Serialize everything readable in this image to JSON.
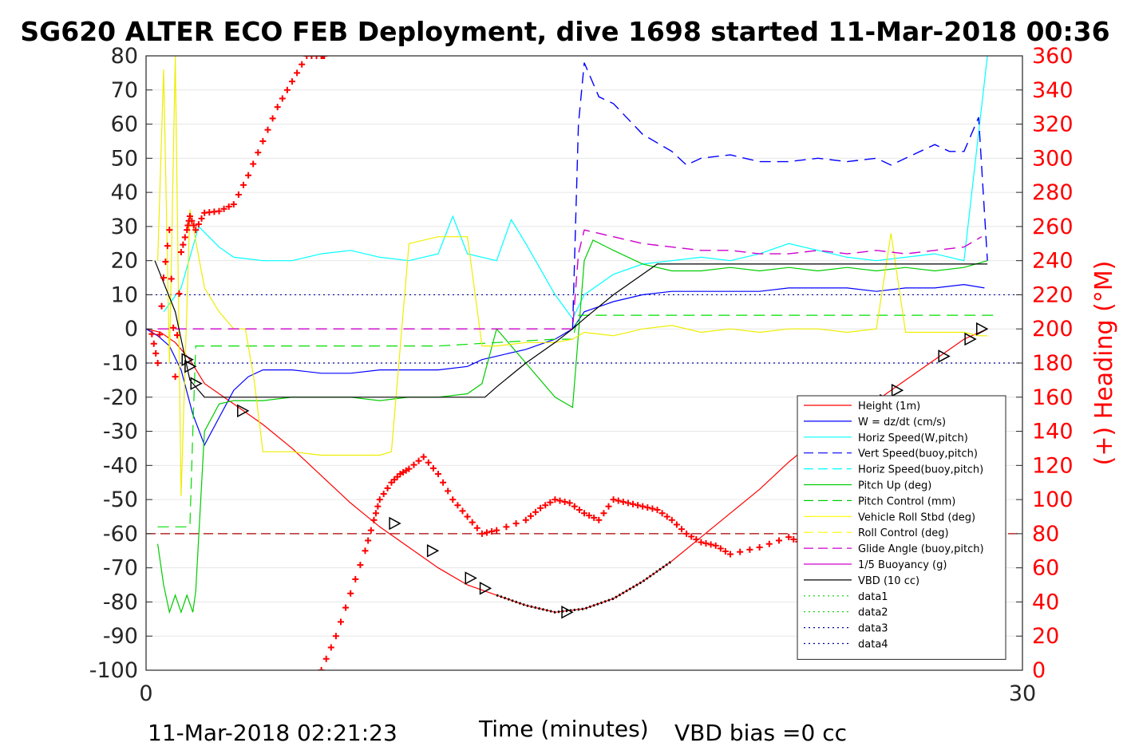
{
  "title": "SG620 ALTER ECO FEB Deployment, dive 1698 started 11-Mar-2018 00:36",
  "footer": {
    "timestamp": "11-Mar-2018 02:21:23",
    "vbd_bias": "VBD bias =0 cc"
  },
  "colors": {
    "height": "#ff0000",
    "w": "#0000ff",
    "horiz_speed": "#00ffff",
    "vert_speed_dash": "#0000cc",
    "pitch": "#00cc00",
    "pitch_control": "#00dd00",
    "roll": "#ffff00",
    "glide": "#cc00cc",
    "buoyancy": "#cc00cc",
    "vbd": "#000000",
    "heading": "#ff0000",
    "axis": "#262626"
  },
  "chart_data": {
    "type": "line",
    "xlabel": "Time (minutes)",
    "ylabel_right": "(+) Heading (°M)",
    "xlim": [
      0,
      30
    ],
    "ylim": [
      -100,
      80
    ],
    "ylim_right": [
      0,
      360
    ],
    "x_ticks": [
      "0",
      "30"
    ],
    "y_ticks": [
      "80",
      "70",
      "60",
      "50",
      "40",
      "30",
      "20",
      "10",
      "0",
      "-10",
      "-20",
      "-30",
      "-40",
      "-50",
      "-60",
      "-70",
      "-80",
      "-90",
      "-100"
    ],
    "y_ticks_right": [
      "360",
      "340",
      "320",
      "300",
      "280",
      "260",
      "240",
      "220",
      "200",
      "180",
      "160",
      "140",
      "120",
      "100",
      "80",
      "60",
      "40",
      "20",
      "0"
    ],
    "legend_position": "lower-right",
    "legend": [
      {
        "label": "Height (1m)",
        "style": "solid",
        "color": "#ff0000"
      },
      {
        "label": "W = dz/dt (cm/s)",
        "style": "solid",
        "color": "#0000ff"
      },
      {
        "label": "Horiz Speed(W,pitch)",
        "style": "solid",
        "color": "#00ffff"
      },
      {
        "label": "Vert Speed(buoy,pitch)",
        "style": "dashed",
        "color": "#0000ff"
      },
      {
        "label": "Horiz Speed(buoy,pitch)",
        "style": "dashed",
        "color": "#00ffff"
      },
      {
        "label": "Pitch Up (deg)",
        "style": "solid",
        "color": "#00cc00"
      },
      {
        "label": "Pitch Control (mm)",
        "style": "dashed",
        "color": "#00cc00"
      },
      {
        "label": "Vehicle Roll Stbd (deg)",
        "style": "solid",
        "color": "#ffff00"
      },
      {
        "label": "Roll Control (deg)",
        "style": "dashed",
        "color": "#ffff00"
      },
      {
        "label": "Glide Angle (buoy,pitch)",
        "style": "dashed",
        "color": "#cc00cc"
      },
      {
        "label": "1/5 Buoyancy (g)",
        "style": "solid",
        "color": "#cc00cc"
      },
      {
        "label": "VBD (10 cc)",
        "style": "solid",
        "color": "#000000"
      },
      {
        "label": "data1",
        "style": "dotted",
        "color": "#00cc00"
      },
      {
        "label": "data2",
        "style": "dotted",
        "color": "#00cc00"
      },
      {
        "label": "data3",
        "style": "dotted",
        "color": "#000099"
      },
      {
        "label": "data4",
        "style": "dotted",
        "color": "#000099"
      }
    ],
    "series": [
      {
        "name": "Height (1m)",
        "x": [
          0,
          0.5,
          1.0,
          1.5,
          2.0,
          3.0,
          4.0,
          5.0,
          6.0,
          7.0,
          8.0,
          9.0,
          10.0,
          11.0,
          12.0,
          13.0,
          14.0,
          15.0,
          16.0,
          17.0,
          18.0,
          19.0,
          20.0,
          21.0,
          22.0,
          23.0,
          24.0,
          25.0,
          26.0,
          27.0,
          28.0,
          28.8
        ],
        "y": [
          0,
          -1,
          -4,
          -9,
          -16,
          -22,
          -28,
          -35,
          -43,
          -51,
          -58,
          -64,
          -70,
          -75,
          -78,
          -81,
          -83,
          -82,
          -79,
          -74,
          -68,
          -61,
          -54,
          -47,
          -39,
          -32,
          -26,
          -21,
          -15,
          -9,
          -3,
          0
        ]
      },
      {
        "name": "W = dz/dt (cm/s)",
        "x": [
          0,
          0.4,
          0.8,
          1.2,
          1.6,
          2.0,
          2.5,
          3.0,
          3.5,
          4.0,
          5,
          6,
          7,
          8,
          9,
          10,
          11,
          11.5,
          12,
          13,
          14,
          14.6,
          15,
          16,
          17,
          18,
          19,
          20,
          21,
          22,
          23,
          24,
          25,
          26,
          27,
          28,
          28.7
        ],
        "y": [
          0,
          -2,
          -5,
          -12,
          -25,
          -34,
          -26,
          -18,
          -14,
          -12,
          -12,
          -13,
          -13,
          -12,
          -12,
          -12,
          -11,
          -9,
          -8,
          -6,
          -3,
          0,
          5,
          8,
          10,
          11,
          11,
          11,
          11,
          12,
          12,
          12,
          11,
          12,
          12,
          13,
          12
        ]
      },
      {
        "name": "Horiz Speed(W,pitch)",
        "x": [
          0.6,
          1.2,
          1.8,
          2.5,
          3.0,
          4.0,
          5,
          6,
          7,
          8,
          9,
          10,
          10.5,
          11,
          12,
          12.5,
          13,
          14,
          14.6,
          15,
          16,
          17,
          18,
          19,
          20,
          21,
          22,
          23,
          24,
          25,
          26,
          27,
          28,
          28.8
        ],
        "y": [
          5,
          12,
          30,
          24,
          21,
          20,
          20,
          22,
          23,
          21,
          20,
          22,
          33,
          22,
          20,
          32,
          25,
          10,
          3,
          10,
          16,
          19,
          20,
          21,
          20,
          22,
          25,
          23,
          21,
          20,
          21,
          22,
          20,
          80
        ]
      },
      {
        "name": "Vert Speed(buoy,pitch)",
        "x": [
          14.6,
          14.8,
          15.0,
          15.5,
          16,
          17,
          18,
          18.5,
          19,
          20,
          21,
          22,
          23,
          24,
          25,
          25.5,
          26,
          27,
          27.5,
          28,
          28.5,
          28.8
        ],
        "y": [
          0,
          60,
          78,
          68,
          66,
          57,
          52,
          48,
          50,
          51,
          49,
          49,
          50,
          49,
          50,
          48,
          50,
          54,
          52,
          52,
          62,
          20
        ]
      },
      {
        "name": "Pitch Up (deg)",
        "x": [
          0.4,
          0.6,
          0.8,
          1.0,
          1.2,
          1.4,
          1.6,
          1.7,
          2.0,
          2.5,
          3.0,
          4.0,
          5,
          6,
          7,
          8,
          9,
          10,
          11,
          11.5,
          12,
          13,
          14,
          14.6,
          15,
          15.3,
          16,
          17,
          18,
          19,
          20,
          21,
          22,
          23,
          24,
          25,
          26,
          27,
          28,
          28.8
        ],
        "y": [
          -63,
          -75,
          -83,
          -78,
          -83,
          -78,
          -83,
          -77,
          -30,
          -22,
          -21,
          -21,
          -20,
          -20,
          -20,
          -21,
          -20,
          -20,
          -19,
          -16,
          0,
          -10,
          -20,
          -23,
          20,
          26,
          23,
          19,
          17,
          17,
          18,
          17,
          18,
          17,
          18,
          17,
          18,
          17,
          18,
          20
        ]
      },
      {
        "name": "Pitch Control (mm)",
        "x": [
          0.4,
          1.5,
          1.6,
          1.7,
          4,
          8,
          10,
          12,
          14,
          14.6,
          14.8,
          29
        ],
        "y": [
          -58,
          -58,
          -30,
          -5,
          -5,
          -5,
          -5,
          -4,
          -3,
          -3,
          4,
          4
        ]
      },
      {
        "name": "Vehicle Roll Stbd (deg)",
        "x": [
          0.4,
          0.6,
          0.8,
          1.0,
          1.2,
          1.5,
          2.0,
          2.5,
          3.0,
          3.4,
          3.7,
          4.0,
          5,
          6,
          7,
          8,
          8.4,
          9,
          10,
          10.5,
          11,
          11.5,
          12,
          13,
          14,
          14.6,
          15,
          16,
          17,
          18,
          19,
          20,
          21,
          22,
          23,
          24,
          25,
          25.5,
          26,
          27,
          27.5,
          28,
          28.5,
          28.8
        ],
        "y": [
          20,
          76,
          -10,
          80,
          -49,
          35,
          12,
          5,
          0,
          0,
          -15,
          -36,
          -36,
          -37,
          -37,
          -37,
          -36,
          25,
          27,
          27,
          27,
          -5,
          -5,
          -4,
          -4,
          -3,
          -1,
          -2,
          0,
          1,
          -1,
          0,
          -1,
          0,
          0,
          -1,
          0,
          28,
          -1,
          -1,
          -1,
          -1,
          -2,
          -2
        ]
      },
      {
        "name": "Glide Angle (buoy,pitch)",
        "x": [
          0.4,
          14.6,
          14.8,
          15.0,
          16,
          17,
          18,
          19,
          20,
          21,
          22,
          23,
          24,
          25,
          26,
          27,
          28,
          28.6
        ],
        "y": [
          0,
          0,
          22,
          29,
          27,
          25,
          24,
          23,
          23,
          22,
          22,
          23,
          22,
          23,
          22,
          23,
          24,
          27
        ]
      },
      {
        "name": "VBD (10 cc)",
        "x": [
          0.3,
          1.0,
          1.5,
          2.0,
          5,
          8,
          10,
          11.6,
          12,
          13,
          14,
          14.6,
          15,
          16,
          17,
          17.5,
          20,
          24,
          28.8
        ],
        "y": [
          20,
          5,
          -15,
          -20,
          -20,
          -20,
          -20,
          -20,
          -17,
          -10,
          -4,
          0,
          3,
          10,
          16,
          19,
          19,
          19,
          19
        ]
      },
      {
        "name": "Heading",
        "x": [
          0.2,
          0.4,
          0.6,
          0.8,
          1.0,
          1.2,
          1.4,
          1.5,
          1.7,
          2.0,
          2.5,
          3.0,
          3.5,
          4.0,
          4.5,
          5.0,
          5.5,
          6.0,
          6.1
        ],
        "y_right": [
          197,
          180,
          230,
          258,
          172,
          245,
          258,
          266,
          258,
          268,
          269,
          273,
          290,
          310,
          330,
          345,
          360,
          360,
          360
        ]
      },
      {
        "name": "Heading (descent)",
        "x": [
          6.0,
          6.5,
          7.0,
          7.5,
          7.8,
          8.0,
          8.4,
          8.7,
          9.0,
          9.5,
          10.0,
          10.5,
          11.0,
          11.5,
          12,
          13,
          13.5,
          14,
          14.5,
          15,
          15.5,
          16,
          16.5,
          17,
          17.5,
          18,
          18.5,
          19,
          19.5,
          20,
          21,
          22,
          22.5,
          23,
          23.5,
          24,
          24.5,
          25,
          25.5,
          26,
          26.5,
          27
        ],
        "y_right": [
          0,
          20,
          45,
          70,
          88,
          100,
          110,
          115,
          118,
          125,
          115,
          100,
          90,
          80,
          82,
          88,
          95,
          100,
          98,
          92,
          88,
          100,
          98,
          96,
          94,
          88,
          80,
          75,
          73,
          68,
          72,
          78,
          74,
          70,
          72,
          70,
          72,
          68,
          68,
          66,
          64,
          65
        ]
      }
    ],
    "markers_triangles": [
      {
        "x": 1.4,
        "y": -9
      },
      {
        "x": 1.5,
        "y": -11
      },
      {
        "x": 1.7,
        "y": -16
      },
      {
        "x": 3.3,
        "y": -24
      },
      {
        "x": 8.5,
        "y": -57
      },
      {
        "x": 9.8,
        "y": -65
      },
      {
        "x": 11.1,
        "y": -73
      },
      {
        "x": 11.6,
        "y": -76
      },
      {
        "x": 14.4,
        "y": -83
      },
      {
        "x": 25.3,
        "y": -21
      },
      {
        "x": 25.7,
        "y": -18
      },
      {
        "x": 27.3,
        "y": -8
      },
      {
        "x": 28.2,
        "y": -3
      },
      {
        "x": 28.6,
        "y": 0
      }
    ],
    "reference_lines": [
      {
        "y": 10,
        "style": "dotted",
        "color": "#000099"
      },
      {
        "y": -10,
        "style": "dotted",
        "color": "#000099"
      },
      {
        "y": -60,
        "style": "dashed",
        "color": "#aa0000"
      }
    ]
  }
}
